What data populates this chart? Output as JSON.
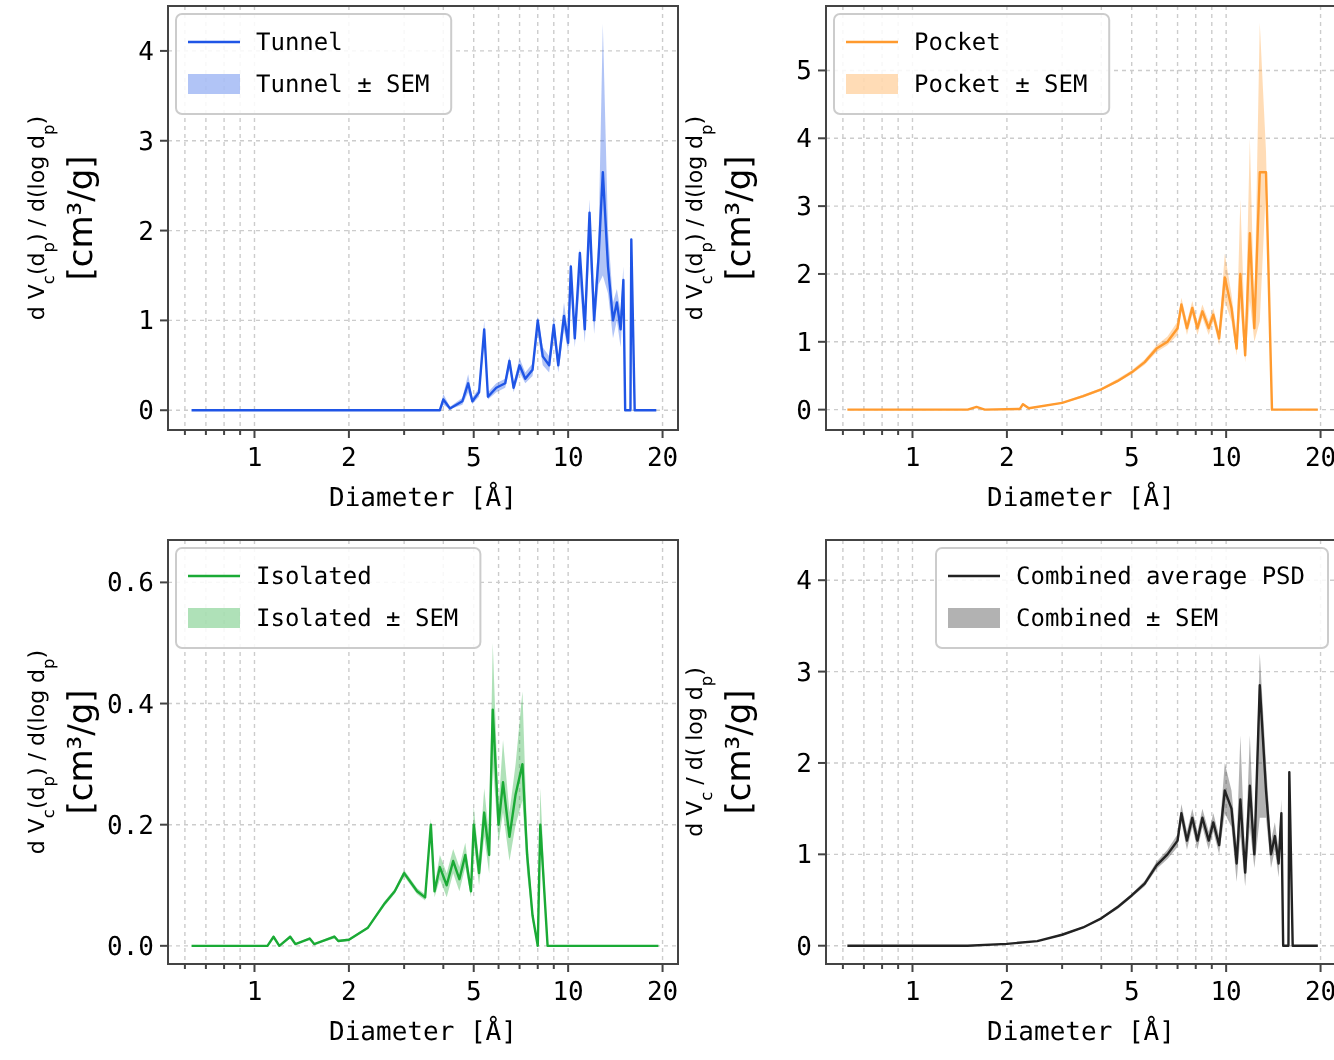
{
  "chart_data": [
    {
      "type": "line",
      "xlabel": "Diameter [Å]",
      "ylabel": "d V$_{c}$(d$_{p}$) / d(log d$_{p}$) [cm³/g]",
      "log": "x",
      "grid": true,
      "legend": "top left",
      "line_style": "solid",
      "marker": "none",
      "annotations": [
        "Tunnel ± SEM"
      ],
      "xlim": [
        0.53,
        22.4
      ],
      "xticks": [
        {
          "value": 0.6,
          "label": null
        },
        {
          "value": 0.7,
          "label": null
        },
        {
          "value": 0.8,
          "label": null
        },
        {
          "value": 0.9,
          "label": null
        },
        1,
        2,
        {
          "value": 3,
          "label": null
        },
        {
          "value": 4,
          "label": null
        },
        5,
        {
          "value": 6,
          "label": null
        },
        {
          "value": 7,
          "label": null
        },
        {
          "value": 8,
          "label": null
        },
        {
          "value": 9,
          "label": null
        },
        10,
        20
      ],
      "ylim": [
        -0.22,
        4.5
      ],
      "yticks": [
        0,
        1,
        2,
        3,
        4
      ],
      "series": [
        {
          "name": "Tunnel",
          "color": "#1f55e6",
          "x": [
            0.63,
            3.9,
            4.0,
            4.2,
            4.6,
            4.8,
            4.95,
            5.2,
            5.4,
            5.55,
            5.9,
            6.3,
            6.5,
            6.7,
            7.0,
            7.3,
            7.7,
            8.0,
            8.3,
            8.7,
            9.0,
            9.3,
            9.7,
            10.0,
            10.2,
            10.5,
            10.9,
            11.3,
            11.7,
            12.1,
            12.5,
            12.9,
            13.4,
            13.9,
            14.3,
            14.7,
            15.0,
            15.2,
            15.8,
            15.9,
            16.3,
            19.1
          ],
          "values": [
            0,
            0,
            0.12,
            0.02,
            0.1,
            0.3,
            0.1,
            0.2,
            0.9,
            0.15,
            0.25,
            0.3,
            0.55,
            0.25,
            0.5,
            0.35,
            0.45,
            1.0,
            0.6,
            0.5,
            0.95,
            0.5,
            1.05,
            0.75,
            1.6,
            0.8,
            1.75,
            0.9,
            2.2,
            1.0,
            1.7,
            2.65,
            1.6,
            1.0,
            1.2,
            0.9,
            1.45,
            0,
            0,
            1.9,
            0,
            0
          ],
          "lower": [
            0,
            0,
            0.06,
            0.01,
            0.06,
            0.2,
            0.07,
            0.15,
            0.75,
            0.12,
            0.2,
            0.25,
            0.45,
            0.2,
            0.42,
            0.3,
            0.38,
            0.85,
            0.5,
            0.42,
            0.8,
            0.42,
            0.9,
            0.65,
            1.3,
            0.7,
            1.4,
            0.75,
            1.8,
            0.85,
            1.4,
            1.5,
            1.3,
            0.8,
            1.0,
            0.7,
            1.25,
            0,
            0,
            1.88,
            0,
            0
          ],
          "upper": [
            0,
            0,
            0.18,
            0.04,
            0.14,
            0.4,
            0.14,
            0.25,
            1.0,
            0.2,
            0.3,
            0.35,
            0.6,
            0.3,
            0.58,
            0.42,
            0.52,
            1.05,
            0.7,
            0.6,
            1.05,
            0.6,
            1.2,
            0.85,
            1.65,
            0.95,
            1.8,
            1.05,
            2.35,
            1.2,
            1.9,
            4.3,
            2.0,
            1.2,
            1.35,
            1.1,
            1.6,
            0,
            0,
            1.92,
            0,
            0
          ]
        }
      ]
    },
    {
      "type": "line",
      "xlabel": "Diameter [Å]",
      "ylabel": "d V$_{c}$(d$_{p}$) / d(log d$_{p}$) [cm³/g]",
      "log": "x",
      "grid": true,
      "legend": "top left",
      "line_style": "solid",
      "marker": "none",
      "annotations": [
        "Pocket ± SEM"
      ],
      "xlim": [
        0.53,
        22.4
      ],
      "xticks": [
        {
          "value": 0.6,
          "label": null
        },
        {
          "value": 0.7,
          "label": null
        },
        {
          "value": 0.8,
          "label": null
        },
        {
          "value": 0.9,
          "label": null
        },
        1,
        2,
        {
          "value": 3,
          "label": null
        },
        {
          "value": 4,
          "label": null
        },
        5,
        {
          "value": 6,
          "label": null
        },
        {
          "value": 7,
          "label": null
        },
        {
          "value": 8,
          "label": null
        },
        {
          "value": 9,
          "label": null
        },
        10,
        20
      ],
      "ylim": [
        -0.3,
        5.95
      ],
      "yticks": [
        0,
        1,
        2,
        3,
        4,
        5
      ],
      "series": [
        {
          "name": "Pocket",
          "color": "#ff9a2e",
          "x": [
            0.62,
            1.5,
            1.6,
            1.7,
            2.2,
            2.25,
            2.35,
            3.0,
            3.5,
            4.0,
            4.5,
            5.0,
            5.5,
            6.0,
            6.5,
            7.0,
            7.2,
            7.5,
            7.8,
            8.1,
            8.4,
            8.8,
            9.1,
            9.5,
            9.9,
            10.4,
            10.8,
            11.1,
            11.5,
            11.9,
            12.3,
            12.8,
            13.4,
            14.0,
            19.6
          ],
          "values": [
            0,
            0,
            0.04,
            0,
            0.01,
            0.08,
            0.02,
            0.1,
            0.2,
            0.3,
            0.42,
            0.55,
            0.7,
            0.9,
            1.0,
            1.2,
            1.55,
            1.2,
            1.5,
            1.2,
            1.45,
            1.2,
            1.4,
            1.05,
            1.95,
            1.5,
            0.9,
            2.0,
            0.8,
            2.6,
            1.2,
            3.5,
            3.5,
            0,
            0
          ],
          "lower": [
            0,
            0,
            0.03,
            0,
            0.01,
            0.06,
            0.01,
            0.09,
            0.18,
            0.28,
            0.4,
            0.52,
            0.66,
            0.85,
            0.95,
            1.1,
            1.45,
            1.1,
            1.4,
            1.1,
            1.35,
            1.1,
            1.3,
            0.95,
            1.6,
            1.3,
            0.8,
            1.5,
            0.7,
            1.6,
            1.0,
            1.3,
            3.3,
            0,
            0
          ],
          "upper": [
            0,
            0,
            0.05,
            0,
            0.02,
            0.1,
            0.03,
            0.11,
            0.22,
            0.32,
            0.45,
            0.58,
            0.74,
            0.95,
            1.08,
            1.3,
            1.65,
            1.3,
            1.6,
            1.3,
            1.55,
            1.3,
            1.5,
            1.15,
            2.3,
            1.7,
            1.1,
            3.1,
            1.0,
            4.0,
            1.4,
            5.7,
            3.8,
            0,
            0
          ]
        }
      ]
    },
    {
      "type": "line",
      "xlabel": "Diameter [Å]",
      "ylabel": "d V$_{c}$(d$_{p}$) / d(log d$_{p}$) [cm³/g]",
      "log": "x",
      "grid": true,
      "legend": "top left",
      "line_style": "solid",
      "marker": "none",
      "annotations": [
        "Isolated ± SEM"
      ],
      "xlim": [
        0.53,
        22.4
      ],
      "xticks": [
        {
          "value": 0.6,
          "label": null
        },
        {
          "value": 0.7,
          "label": null
        },
        {
          "value": 0.8,
          "label": null
        },
        {
          "value": 0.9,
          "label": null
        },
        1,
        2,
        {
          "value": 3,
          "label": null
        },
        {
          "value": 4,
          "label": null
        },
        5,
        {
          "value": 6,
          "label": null
        },
        {
          "value": 7,
          "label": null
        },
        {
          "value": 8,
          "label": null
        },
        {
          "value": 9,
          "label": null
        },
        10,
        20
      ],
      "ylim": [
        -0.03,
        0.67
      ],
      "yticks": [
        {
          "value": 0,
          "label": "0.0"
        },
        {
          "value": 0.2,
          "label": "0.2"
        },
        {
          "value": 0.4,
          "label": "0.4"
        },
        {
          "value": 0.6,
          "label": "0.6"
        }
      ],
      "series": [
        {
          "name": "Isolated",
          "color": "#1aaa35",
          "x": [
            0.63,
            1.1,
            1.15,
            1.2,
            1.3,
            1.35,
            1.5,
            1.55,
            1.8,
            1.85,
            2.0,
            2.3,
            2.6,
            2.8,
            3.0,
            3.3,
            3.5,
            3.65,
            3.75,
            3.9,
            4.1,
            4.3,
            4.5,
            4.7,
            4.9,
            5.0,
            5.2,
            5.4,
            5.6,
            5.75,
            6.0,
            6.2,
            6.5,
            6.8,
            7.15,
            7.4,
            7.7,
            8.0,
            8.15,
            8.6,
            19.4
          ],
          "values": [
            0,
            0,
            0.015,
            0,
            0.015,
            0.003,
            0.012,
            0.003,
            0.015,
            0.008,
            0.01,
            0.03,
            0.07,
            0.09,
            0.12,
            0.09,
            0.08,
            0.2,
            0.09,
            0.13,
            0.1,
            0.14,
            0.11,
            0.15,
            0.09,
            0.2,
            0.12,
            0.22,
            0.15,
            0.39,
            0.2,
            0.27,
            0.18,
            0.25,
            0.3,
            0.15,
            0.05,
            0,
            0.2,
            0,
            0
          ],
          "lower": [
            0,
            0,
            0.012,
            0,
            0.012,
            0.002,
            0.01,
            0.002,
            0.012,
            0.006,
            0.008,
            0.028,
            0.066,
            0.086,
            0.115,
            0.085,
            0.075,
            0.19,
            0.08,
            0.11,
            0.08,
            0.12,
            0.09,
            0.13,
            0.08,
            0.17,
            0.1,
            0.18,
            0.12,
            0.3,
            0.17,
            0.22,
            0.14,
            0.2,
            0.24,
            0.12,
            0.04,
            0,
            0.17,
            0,
            0
          ],
          "upper": [
            0,
            0,
            0.018,
            0,
            0.018,
            0.004,
            0.014,
            0.004,
            0.018,
            0.01,
            0.012,
            0.032,
            0.074,
            0.094,
            0.125,
            0.095,
            0.085,
            0.21,
            0.1,
            0.15,
            0.12,
            0.16,
            0.13,
            0.17,
            0.1,
            0.23,
            0.14,
            0.26,
            0.18,
            0.5,
            0.23,
            0.34,
            0.22,
            0.3,
            0.42,
            0.18,
            0.06,
            0,
            0.26,
            0,
            0
          ]
        }
      ]
    },
    {
      "type": "line",
      "xlabel": "Diameter [Å]",
      "ylabel": "d V$_{c}$ / d( log d$_{p}$) [cm³/g]",
      "log": "x",
      "grid": true,
      "legend": "top right",
      "line_style": "solid",
      "marker": "none",
      "annotations": [
        "Combined ± SEM"
      ],
      "xlim": [
        0.53,
        22.4
      ],
      "xticks": [
        {
          "value": 0.6,
          "label": null
        },
        {
          "value": 0.7,
          "label": null
        },
        {
          "value": 0.8,
          "label": null
        },
        {
          "value": 0.9,
          "label": null
        },
        1,
        2,
        {
          "value": 3,
          "label": null
        },
        {
          "value": 4,
          "label": null
        },
        5,
        {
          "value": 6,
          "label": null
        },
        {
          "value": 7,
          "label": null
        },
        {
          "value": 8,
          "label": null
        },
        {
          "value": 9,
          "label": null
        },
        10,
        20
      ],
      "ylim": [
        -0.2,
        4.44
      ],
      "yticks": [
        0,
        1,
        2,
        3,
        4
      ],
      "series": [
        {
          "name": "Combined average PSD",
          "color": "#222222",
          "x": [
            0.62,
            1.5,
            2.0,
            2.5,
            3.0,
            3.5,
            4.0,
            4.5,
            5.0,
            5.5,
            6.0,
            6.5,
            7.0,
            7.2,
            7.5,
            7.8,
            8.1,
            8.4,
            8.8,
            9.1,
            9.5,
            9.9,
            10.4,
            10.8,
            11.1,
            11.5,
            11.9,
            12.3,
            12.8,
            13.4,
            13.9,
            14.3,
            14.7,
            15.0,
            15.2,
            15.8,
            15.9,
            16.3,
            19.6
          ],
          "values": [
            0,
            0,
            0.02,
            0.05,
            0.12,
            0.2,
            0.3,
            0.42,
            0.55,
            0.68,
            0.88,
            1.0,
            1.15,
            1.45,
            1.15,
            1.4,
            1.15,
            1.4,
            1.15,
            1.35,
            1.1,
            1.7,
            1.5,
            0.9,
            1.6,
            0.8,
            1.75,
            1.0,
            2.85,
            1.7,
            1.0,
            1.2,
            0.9,
            1.45,
            0,
            0,
            1.9,
            0,
            0
          ],
          "lower": [
            0,
            0,
            0.02,
            0.05,
            0.11,
            0.19,
            0.29,
            0.4,
            0.53,
            0.65,
            0.84,
            0.95,
            1.08,
            1.35,
            1.05,
            1.3,
            1.05,
            1.3,
            1.05,
            1.25,
            1.0,
            1.45,
            1.3,
            0.7,
            1.2,
            0.65,
            1.3,
            0.85,
            1.4,
            1.4,
            0.85,
            1.05,
            0.75,
            1.3,
            0,
            0,
            1.88,
            0,
            0
          ],
          "upper": [
            0,
            0,
            0.02,
            0.05,
            0.13,
            0.21,
            0.31,
            0.44,
            0.57,
            0.71,
            0.92,
            1.05,
            1.22,
            1.55,
            1.25,
            1.5,
            1.25,
            1.5,
            1.25,
            1.45,
            1.2,
            2.0,
            1.7,
            1.1,
            2.3,
            0.95,
            2.3,
            1.15,
            3.2,
            2.0,
            1.15,
            1.35,
            1.05,
            1.6,
            0,
            0,
            1.92,
            0,
            0
          ]
        }
      ]
    }
  ]
}
